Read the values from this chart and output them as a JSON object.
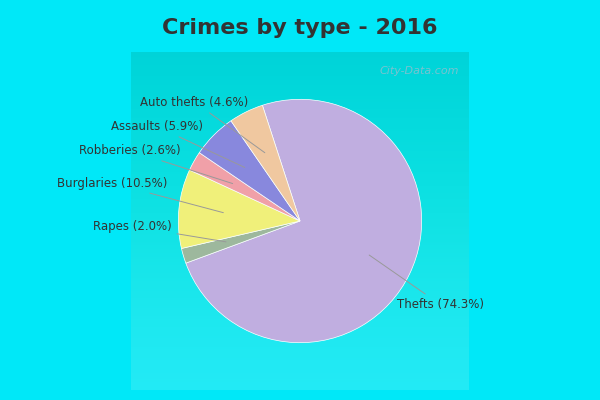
{
  "title": "Crimes by type - 2016",
  "labels": [
    "Thefts",
    "Rapes",
    "Burglaries",
    "Robberies",
    "Assaults",
    "Auto thefts"
  ],
  "values": [
    74.3,
    2.0,
    10.5,
    2.6,
    5.9,
    4.6
  ],
  "colors": [
    "#c0aee0",
    "#9db89d",
    "#f0f07a",
    "#f0a0a8",
    "#8888dd",
    "#f0c8a0"
  ],
  "label_texts": [
    "Thefts (74.3%)",
    "Rapes (2.0%)",
    "Burglaries (10.5%)",
    "Robberies (2.6%)",
    "Assaults (5.9%)",
    "Auto thefts (4.6%)"
  ],
  "title_bar_color": "#00e8f8",
  "border_color": "#00e8f8",
  "bg_color": "#d8ede0",
  "title_color": "#333333",
  "title_fontsize": 16,
  "label_fontsize": 8.5,
  "figsize": [
    6.0,
    4.0
  ],
  "dpi": 100,
  "watermark": "City-Data.com",
  "startangle": 108,
  "annot_data": [
    {
      "label": "Thefts (74.3%)",
      "lxy": [
        0.72,
        -0.62
      ],
      "wedge_r": 0.52
    },
    {
      "label": "Rapes (2.0%)",
      "lxy": [
        -0.95,
        -0.04
      ],
      "wedge_r": 0.52
    },
    {
      "label": "Burglaries (10.5%)",
      "lxy": [
        -0.98,
        0.28
      ],
      "wedge_r": 0.52
    },
    {
      "label": "Robberies (2.6%)",
      "lxy": [
        -0.88,
        0.52
      ],
      "wedge_r": 0.52
    },
    {
      "label": "Assaults (5.9%)",
      "lxy": [
        -0.72,
        0.7
      ],
      "wedge_r": 0.52
    },
    {
      "label": "Auto thefts (4.6%)",
      "lxy": [
        -0.38,
        0.88
      ],
      "wedge_r": 0.52
    }
  ]
}
